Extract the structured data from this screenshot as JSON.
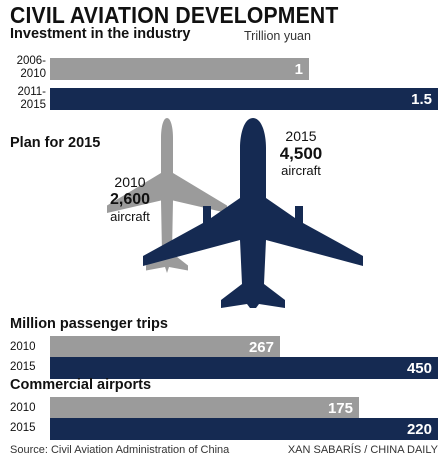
{
  "title": "CIVIL AVIATION DEVELOPMENT",
  "colors": {
    "past": "#9b9b9b",
    "future": "#152a52"
  },
  "chart_data": [
    {
      "type": "bar",
      "title": "Investment in the industry",
      "unit": "Trillion yuan",
      "categories": [
        "2006-2010",
        "2011-2015"
      ],
      "category_lines": [
        [
          "2006-",
          "2010"
        ],
        [
          "2011-",
          "2015"
        ]
      ],
      "values": [
        1,
        1.5
      ],
      "value_labels": [
        "1",
        "1.5"
      ],
      "xlim": [
        0,
        1.5
      ]
    },
    {
      "type": "bar",
      "title": "Plan for 2015",
      "categories": [
        "2010",
        "2015"
      ],
      "values": [
        2600,
        4500
      ],
      "value_labels": [
        "2,600",
        "4,500"
      ],
      "unit_label": "aircraft"
    },
    {
      "type": "bar",
      "title": "Million passenger trips",
      "categories": [
        "2010",
        "2015"
      ],
      "values": [
        267,
        450
      ],
      "value_labels": [
        "267",
        "450"
      ],
      "xlim": [
        0,
        450
      ]
    },
    {
      "type": "bar",
      "title": "Commercial airports",
      "categories": [
        "2010",
        "2015"
      ],
      "values": [
        175,
        220
      ],
      "value_labels": [
        "175",
        "220"
      ],
      "xlim": [
        0,
        220
      ]
    }
  ],
  "footer": {
    "source": "Source: Civil Aviation Administration of China",
    "credit": "XAN SABARÍS / CHINA DAILY"
  }
}
